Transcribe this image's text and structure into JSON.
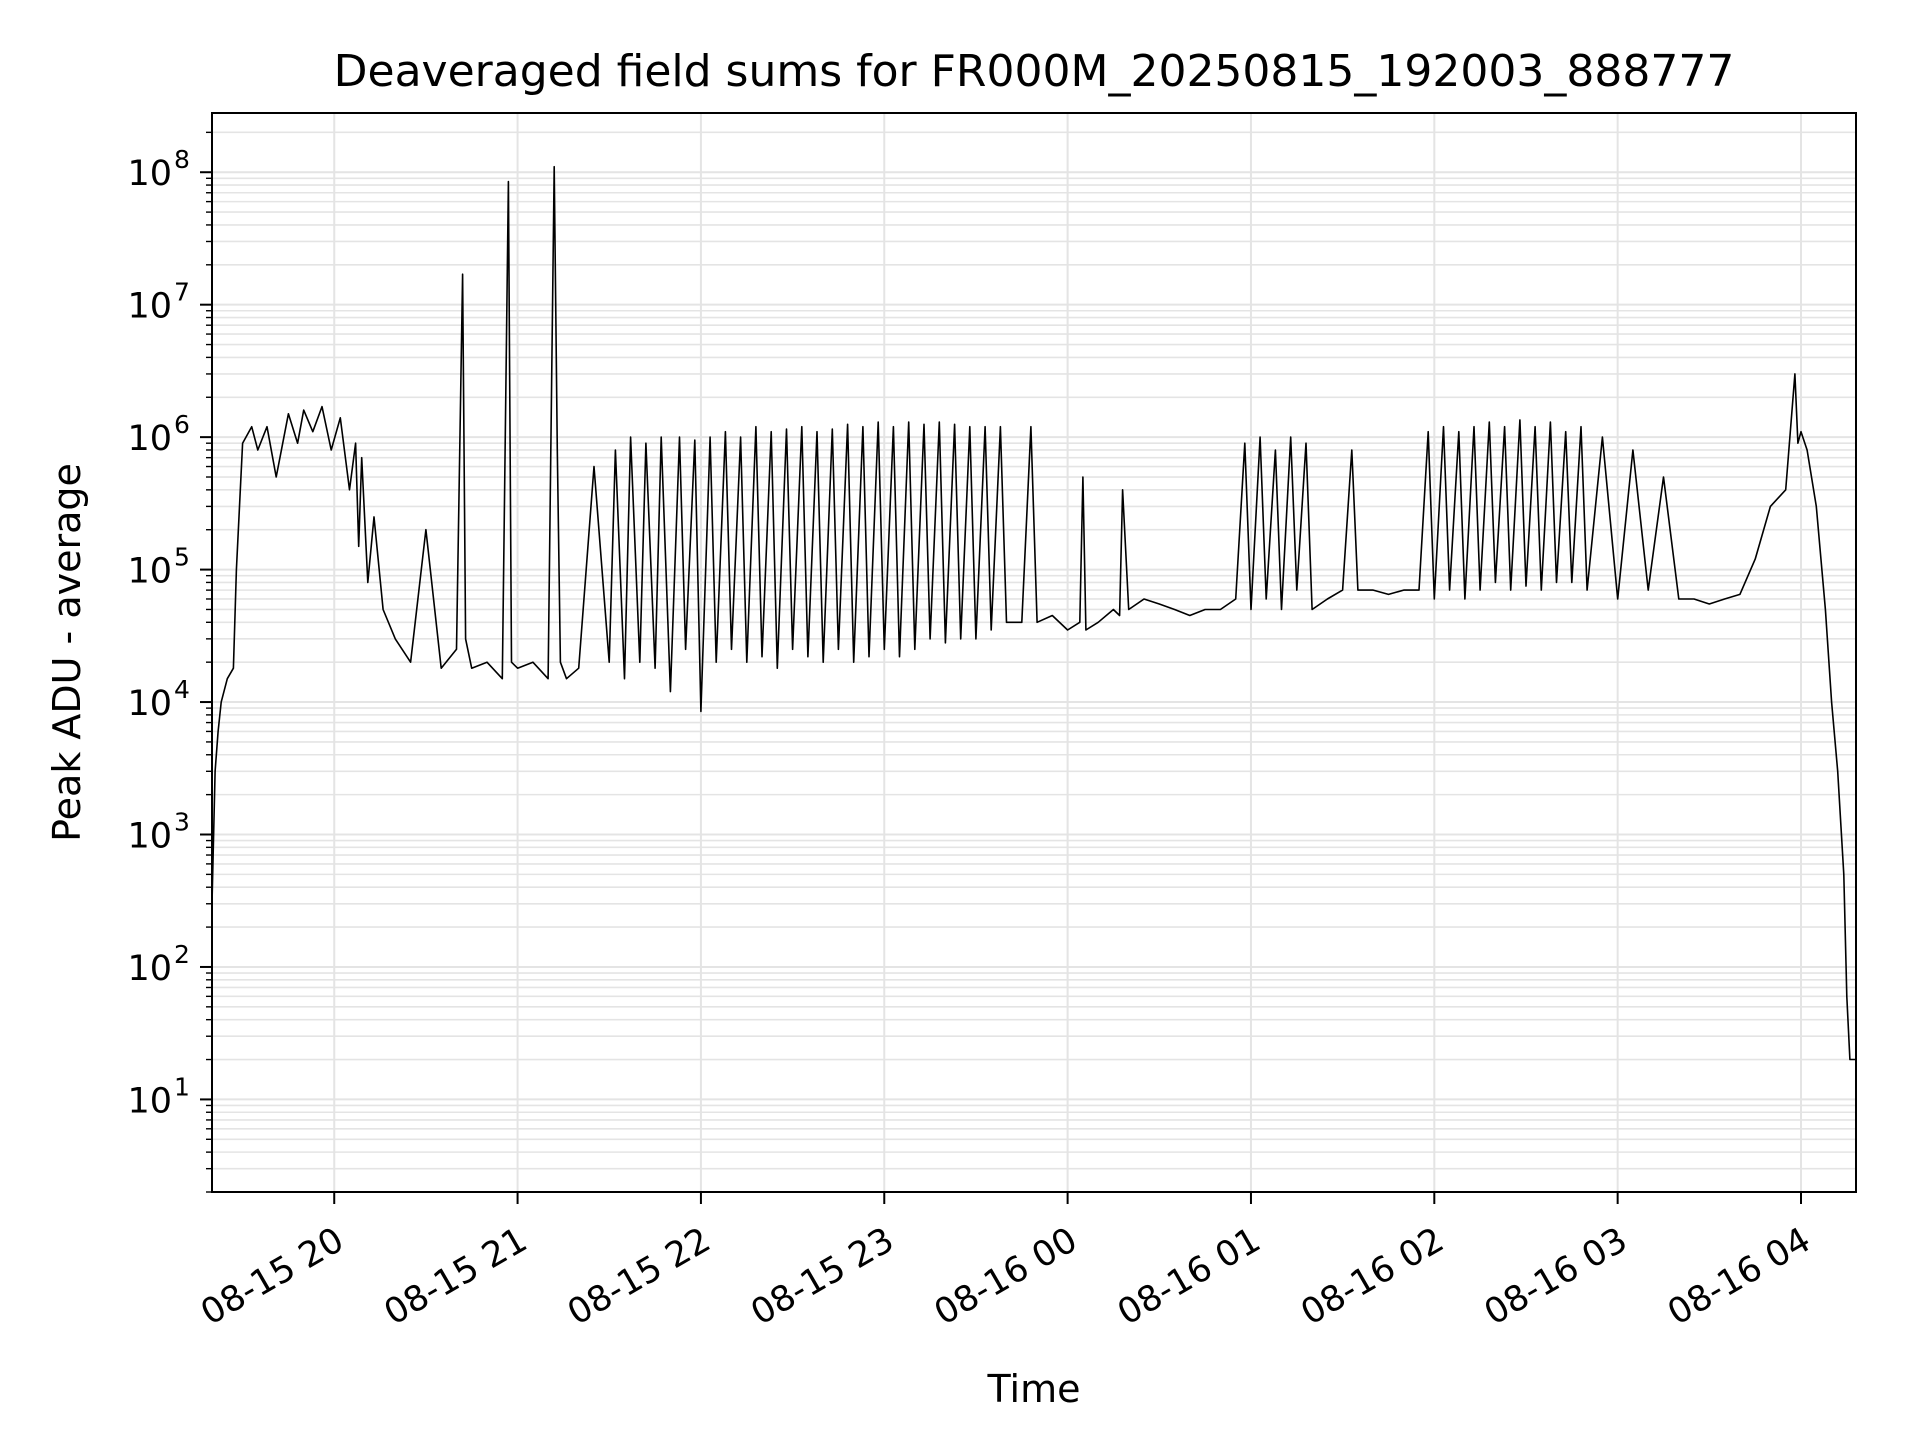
{
  "chart_data": {
    "type": "line",
    "title": "Deaveraged field sums for FR000M_20250815_192003_888777",
    "xlabel": "Time",
    "ylabel": "Peak ADU - average",
    "yscale": "log",
    "ylim": [
      2,
      280000000
    ],
    "xlim": [
      "2025-08-15T19:20:00",
      "2025-08-16T04:18:00"
    ],
    "grid": true,
    "grid_minor": true,
    "line_color": "#000000",
    "grid_color": "#e4e4e4",
    "x_ticks": [
      {
        "t": "2025-08-15T20:00:00",
        "label": "08-15 20"
      },
      {
        "t": "2025-08-15T21:00:00",
        "label": "08-15 21"
      },
      {
        "t": "2025-08-15T22:00:00",
        "label": "08-15 22"
      },
      {
        "t": "2025-08-15T23:00:00",
        "label": "08-15 23"
      },
      {
        "t": "2025-08-16T00:00:00",
        "label": "08-16 00"
      },
      {
        "t": "2025-08-16T01:00:00",
        "label": "08-16 01"
      },
      {
        "t": "2025-08-16T02:00:00",
        "label": "08-16 02"
      },
      {
        "t": "2025-08-16T03:00:00",
        "label": "08-16 03"
      },
      {
        "t": "2025-08-16T04:00:00",
        "label": "08-16 04"
      }
    ],
    "y_ticks": [
      {
        "v": 10,
        "base": "10",
        "exp": "1"
      },
      {
        "v": 100,
        "base": "10",
        "exp": "2"
      },
      {
        "v": 1000,
        "base": "10",
        "exp": "3"
      },
      {
        "v": 10000,
        "base": "10",
        "exp": "4"
      },
      {
        "v": 100000,
        "base": "10",
        "exp": "5"
      },
      {
        "v": 1000000,
        "base": "10",
        "exp": "6"
      },
      {
        "v": 10000000,
        "base": "10",
        "exp": "7"
      },
      {
        "v": 100000000,
        "base": "10",
        "exp": "8"
      }
    ],
    "series": [
      {
        "x": [
          "2025-08-15T19:20:00",
          "2025-08-15T19:21:00",
          "2025-08-15T19:22:00",
          "2025-08-15T19:23:00",
          "2025-08-15T19:25:00",
          "2025-08-15T19:27:00",
          "2025-08-15T19:28:00",
          "2025-08-15T19:30:00",
          "2025-08-15T19:33:00",
          "2025-08-15T19:35:00",
          "2025-08-15T19:38:00",
          "2025-08-15T19:41:00",
          "2025-08-15T19:45:00",
          "2025-08-15T19:48:00",
          "2025-08-15T19:50:00",
          "2025-08-15T19:53:00",
          "2025-08-15T19:56:00",
          "2025-08-15T19:59:00",
          "2025-08-15T20:02:00",
          "2025-08-15T20:05:00",
          "2025-08-15T20:07:00",
          "2025-08-15T20:08:00",
          "2025-08-15T20:09:00",
          "2025-08-15T20:11:00",
          "2025-08-15T20:13:00",
          "2025-08-15T20:16:00",
          "2025-08-15T20:20:00",
          "2025-08-15T20:25:00",
          "2025-08-15T20:30:00",
          "2025-08-15T20:35:00",
          "2025-08-15T20:40:00",
          "2025-08-15T20:42:00",
          "2025-08-15T20:43:00",
          "2025-08-15T20:45:00",
          "2025-08-15T20:50:00",
          "2025-08-15T20:55:00",
          "2025-08-15T20:57:00",
          "2025-08-15T20:58:00",
          "2025-08-15T21:00:00",
          "2025-08-15T21:05:00",
          "2025-08-15T21:10:00",
          "2025-08-15T21:12:00",
          "2025-08-15T21:13:00",
          "2025-08-15T21:14:00",
          "2025-08-15T21:16:00",
          "2025-08-15T21:20:00",
          "2025-08-15T21:25:00",
          "2025-08-15T21:30:00",
          "2025-08-15T21:32:00",
          "2025-08-15T21:35:00",
          "2025-08-15T21:37:00",
          "2025-08-15T21:40:00",
          "2025-08-15T21:42:00",
          "2025-08-15T21:45:00",
          "2025-08-15T21:47:00",
          "2025-08-15T21:50:00",
          "2025-08-15T21:53:00",
          "2025-08-15T21:55:00",
          "2025-08-15T21:58:00",
          "2025-08-15T22:00:00",
          "2025-08-15T22:03:00",
          "2025-08-15T22:05:00",
          "2025-08-15T22:08:00",
          "2025-08-15T22:10:00",
          "2025-08-15T22:13:00",
          "2025-08-15T22:15:00",
          "2025-08-15T22:18:00",
          "2025-08-15T22:20:00",
          "2025-08-15T22:23:00",
          "2025-08-15T22:25:00",
          "2025-08-15T22:28:00",
          "2025-08-15T22:30:00",
          "2025-08-15T22:33:00",
          "2025-08-15T22:35:00",
          "2025-08-15T22:38:00",
          "2025-08-15T22:40:00",
          "2025-08-15T22:43:00",
          "2025-08-15T22:45:00",
          "2025-08-15T22:48:00",
          "2025-08-15T22:50:00",
          "2025-08-15T22:53:00",
          "2025-08-15T22:55:00",
          "2025-08-15T22:58:00",
          "2025-08-15T23:00:00",
          "2025-08-15T23:03:00",
          "2025-08-15T23:05:00",
          "2025-08-15T23:08:00",
          "2025-08-15T23:10:00",
          "2025-08-15T23:13:00",
          "2025-08-15T23:15:00",
          "2025-08-15T23:18:00",
          "2025-08-15T23:20:00",
          "2025-08-15T23:23:00",
          "2025-08-15T23:25:00",
          "2025-08-15T23:28:00",
          "2025-08-15T23:30:00",
          "2025-08-15T23:33:00",
          "2025-08-15T23:35:00",
          "2025-08-15T23:38:00",
          "2025-08-15T23:40:00",
          "2025-08-15T23:45:00",
          "2025-08-15T23:48:00",
          "2025-08-15T23:50:00",
          "2025-08-15T23:55:00",
          "2025-08-16T00:00:00",
          "2025-08-16T00:04:00",
          "2025-08-16T00:05:00",
          "2025-08-16T00:06:00",
          "2025-08-16T00:10:00",
          "2025-08-16T00:15:00",
          "2025-08-16T00:17:00",
          "2025-08-16T00:18:00",
          "2025-08-16T00:20:00",
          "2025-08-16T00:25:00",
          "2025-08-16T00:30:00",
          "2025-08-16T00:35:00",
          "2025-08-16T00:40:00",
          "2025-08-16T00:45:00",
          "2025-08-16T00:50:00",
          "2025-08-16T00:55:00",
          "2025-08-16T00:58:00",
          "2025-08-16T01:00:00",
          "2025-08-16T01:03:00",
          "2025-08-16T01:05:00",
          "2025-08-16T01:08:00",
          "2025-08-16T01:10:00",
          "2025-08-16T01:13:00",
          "2025-08-16T01:15:00",
          "2025-08-16T01:18:00",
          "2025-08-16T01:20:00",
          "2025-08-16T01:25:00",
          "2025-08-16T01:30:00",
          "2025-08-16T01:33:00",
          "2025-08-16T01:35:00",
          "2025-08-16T01:40:00",
          "2025-08-16T01:45:00",
          "2025-08-16T01:50:00",
          "2025-08-16T01:55:00",
          "2025-08-16T01:58:00",
          "2025-08-16T02:00:00",
          "2025-08-16T02:03:00",
          "2025-08-16T02:05:00",
          "2025-08-16T02:08:00",
          "2025-08-16T02:10:00",
          "2025-08-16T02:13:00",
          "2025-08-16T02:15:00",
          "2025-08-16T02:18:00",
          "2025-08-16T02:20:00",
          "2025-08-16T02:23:00",
          "2025-08-16T02:25:00",
          "2025-08-16T02:28:00",
          "2025-08-16T02:30:00",
          "2025-08-16T02:33:00",
          "2025-08-16T02:35:00",
          "2025-08-16T02:38:00",
          "2025-08-16T02:40:00",
          "2025-08-16T02:43:00",
          "2025-08-16T02:45:00",
          "2025-08-16T02:48:00",
          "2025-08-16T02:50:00",
          "2025-08-16T02:55:00",
          "2025-08-16T03:00:00",
          "2025-08-16T03:05:00",
          "2025-08-16T03:10:00",
          "2025-08-16T03:15:00",
          "2025-08-16T03:20:00",
          "2025-08-16T03:25:00",
          "2025-08-16T03:30:00",
          "2025-08-16T03:35:00",
          "2025-08-16T03:40:00",
          "2025-08-16T03:45:00",
          "2025-08-16T03:50:00",
          "2025-08-16T03:55:00",
          "2025-08-16T03:58:00",
          "2025-08-16T03:59:00",
          "2025-08-16T04:00:00",
          "2025-08-16T04:02:00",
          "2025-08-16T04:05:00",
          "2025-08-16T04:08:00",
          "2025-08-16T04:10:00",
          "2025-08-16T04:12:00",
          "2025-08-16T04:14:00",
          "2025-08-16T04:15:00",
          "2025-08-16T04:16:00",
          "2025-08-16T04:17:00",
          "2025-08-16T04:18:00"
        ],
        "y": [
          300,
          3000,
          6000,
          10000,
          15000,
          18000,
          100000,
          900000,
          1200000,
          800000,
          1200000,
          500000,
          1500000,
          900000,
          1600000,
          1100000,
          1700000,
          800000,
          1400000,
          400000,
          900000,
          150000,
          700000,
          80000,
          250000,
          50000,
          30000,
          20000,
          200000,
          18000,
          25000,
          17000000,
          30000,
          18000,
          20000,
          15000,
          85000000,
          20000,
          18000,
          20000,
          15000,
          110000000,
          800000,
          20000,
          15000,
          18000,
          600000,
          20000,
          800000,
          15000,
          1000000,
          20000,
          900000,
          18000,
          1000000,
          12000,
          1000000,
          25000,
          950000,
          8500,
          1000000,
          20000,
          1100000,
          25000,
          1000000,
          20000,
          1200000,
          22000,
          1100000,
          18000,
          1150000,
          25000,
          1200000,
          22000,
          1100000,
          20000,
          1150000,
          25000,
          1250000,
          20000,
          1200000,
          22000,
          1300000,
          25000,
          1200000,
          22000,
          1300000,
          25000,
          1250000,
          30000,
          1300000,
          28000,
          1250000,
          30000,
          1200000,
          30000,
          1200000,
          35000,
          1200000,
          40000,
          40000,
          1200000,
          40000,
          45000,
          35000,
          40000,
          500000,
          35000,
          40000,
          50000,
          45000,
          400000,
          50000,
          60000,
          55000,
          50000,
          45000,
          50000,
          50000,
          60000,
          900000,
          50000,
          1000000,
          60000,
          800000,
          50000,
          1000000,
          70000,
          900000,
          50000,
          60000,
          70000,
          800000,
          70000,
          70000,
          65000,
          70000,
          70000,
          1100000,
          60000,
          1200000,
          70000,
          1100000,
          60000,
          1200000,
          70000,
          1300000,
          80000,
          1200000,
          70000,
          1350000,
          75000,
          1200000,
          70000,
          1300000,
          80000,
          1100000,
          80000,
          1200000,
          70000,
          1000000,
          60000,
          800000,
          70000,
          500000,
          60000,
          60000,
          55000,
          60000,
          65000,
          120000,
          300000,
          400000,
          3000000,
          900000,
          1100000,
          800000,
          300000,
          50000,
          10000,
          3000,
          500,
          60,
          20,
          20,
          20
        ]
      }
    ]
  }
}
